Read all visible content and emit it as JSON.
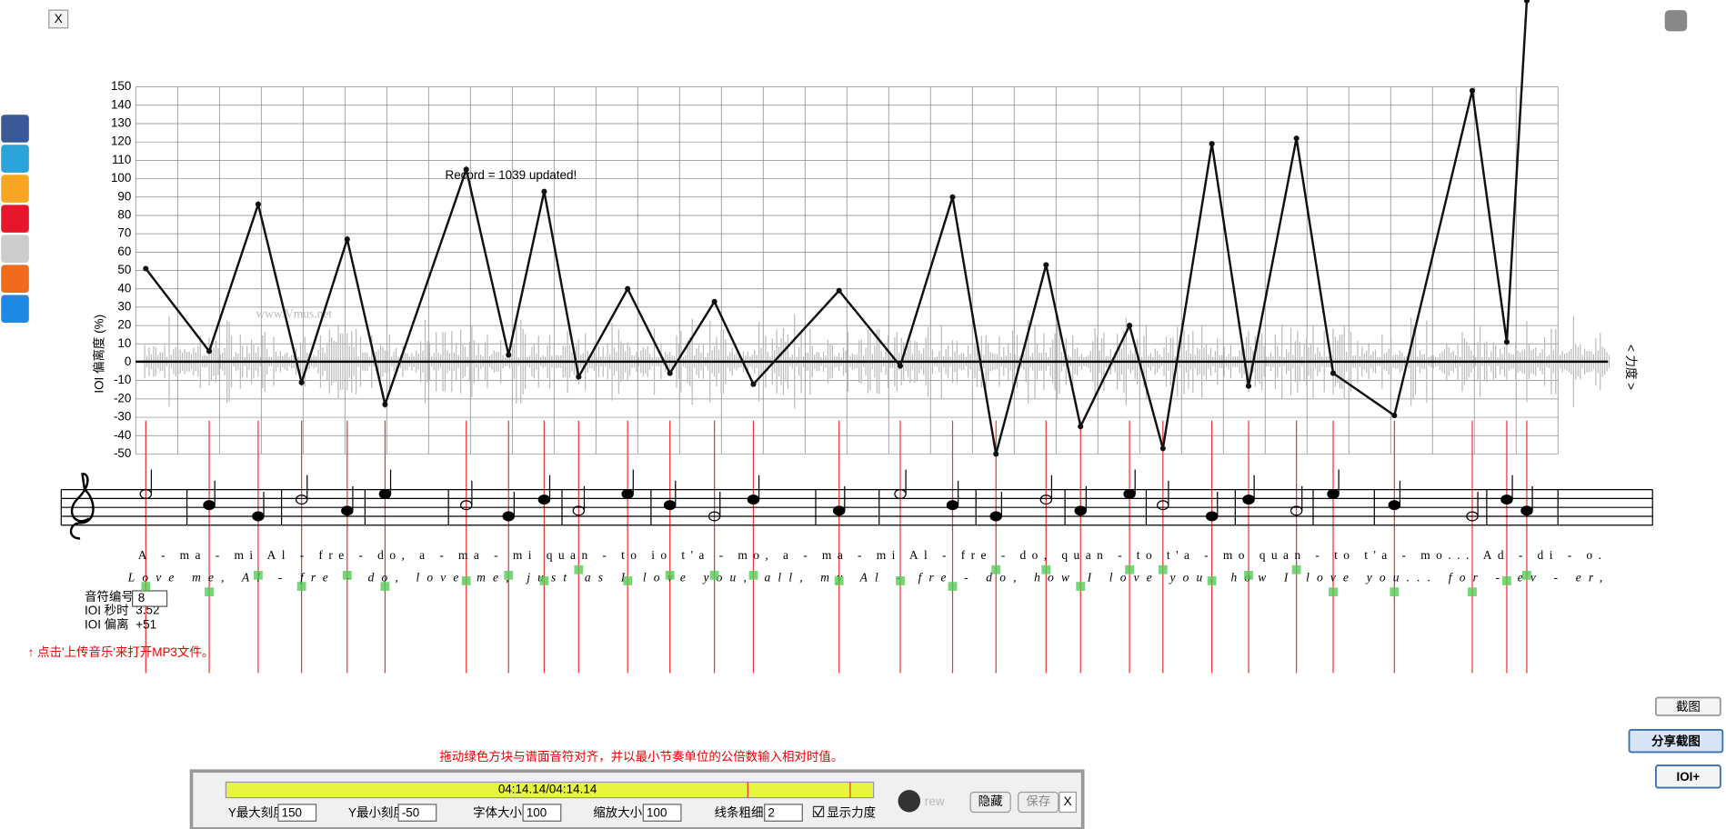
{
  "close_button": "X",
  "chart_data": {
    "type": "line",
    "record_note": "Record = 1039 updated!",
    "watermark": "www.Vmus.net",
    "y_label": "IOI 偏离度 (%)",
    "y2_label": "< 力度 >",
    "ylim": [
      -50,
      150
    ],
    "yticks": [
      150,
      140,
      130,
      120,
      110,
      100,
      90,
      80,
      70,
      60,
      50,
      40,
      30,
      20,
      10,
      0,
      -10,
      -20,
      -30,
      -40,
      -50
    ],
    "grid": true,
    "color": "#111111",
    "values": [
      51,
      6,
      86,
      -11,
      67,
      -23,
      105,
      4,
      93,
      -8,
      40,
      -6,
      33,
      -12,
      39,
      -2,
      90,
      -50,
      53,
      -35,
      20,
      -47,
      119,
      -13,
      122,
      -6,
      -29,
      148,
      11,
      197
    ]
  },
  "lyrics": {
    "line1": "A  -  ma - mi Al - fre  -  do,          a - ma - mi  quan - to io  t'a   -   mo,          a   -   ma  - mi Al - fre - do, quan - to  t'a - mo quan - to  t'a - mo...    Ad - di  -  o.",
    "line2": "Love   me,  Al - fre  -  do,          love  me, just  as    I   love   you,          all,   my   Al - fre - do, how  I   love  you, how  I  love   you...    for - ev - er,"
  },
  "table": {
    "labels": [
      "音符编号",
      "IOI 秒时",
      "IOI 偏离"
    ],
    "first_time": "3.52",
    "first_dev": "+51",
    "first_input": "8"
  },
  "hint": "↑ 点击'上传音乐'来打开MP3文件。",
  "instruction": "拖动绿色方块与谱面音符对齐，并以最小节奏单位的公倍数输入相对时值。",
  "panel": {
    "time": "04:14.14/04:14.14",
    "rew": "rew",
    "hide": "隐藏",
    "save": "保存",
    "close": "X",
    "fields": [
      {
        "label": "Y最大刻度",
        "value": "150"
      },
      {
        "label": "Y最小刻度",
        "value": "-50"
      },
      {
        "label": "字体大小",
        "value": "100"
      },
      {
        "label": "缩放大小",
        "value": "100"
      },
      {
        "label": "线条粗细",
        "value": "2"
      }
    ],
    "checkbox": "显示力度"
  },
  "buttons": {
    "snapshot": "截图",
    "share": "分享截图",
    "ioi": "IOI+"
  }
}
